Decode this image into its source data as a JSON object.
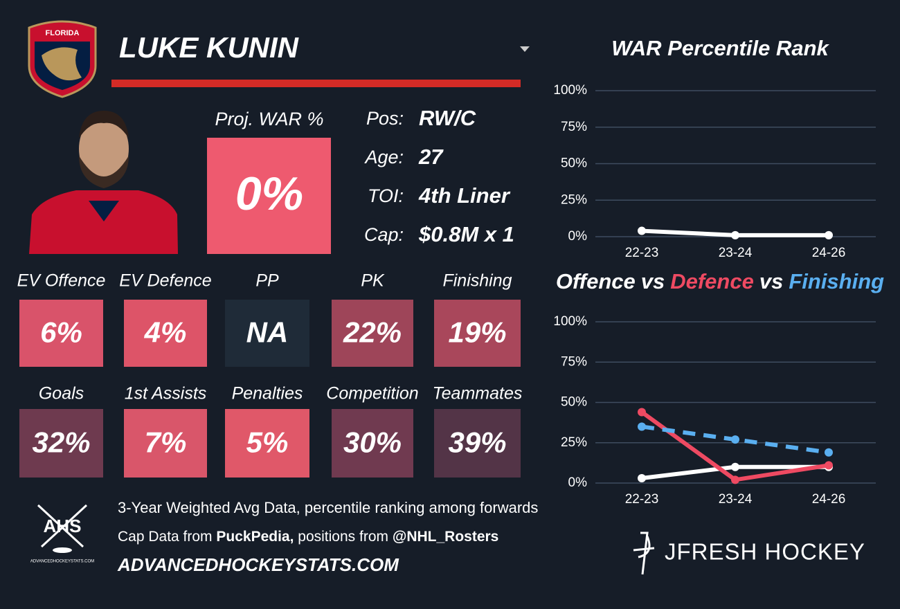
{
  "header": {
    "team_logo_text": "FLORIDA",
    "player": "LUKE KUNIN"
  },
  "projection": {
    "label": "Proj. WAR %",
    "value": "0%",
    "color": "#ee5a6f"
  },
  "info": [
    {
      "label": "Pos:",
      "value": "RW/C"
    },
    {
      "label": "Age:",
      "value": "27"
    },
    {
      "label": "TOI:",
      "value": "4th Liner"
    },
    {
      "label": "Cap:",
      "value": "$0.8M x 1"
    }
  ],
  "tiles": [
    {
      "label": "EV Offence",
      "value": "6%",
      "color": "#d9536a"
    },
    {
      "label": "EV Defence",
      "value": "4%",
      "color": "#dd5468"
    },
    {
      "label": "PP",
      "value": "NA",
      "color": "#1f2b38"
    },
    {
      "label": "PK",
      "value": "22%",
      "color": "#9e4559"
    },
    {
      "label": "Finishing",
      "value": "19%",
      "color": "#a9475b"
    },
    {
      "label": "Goals",
      "value": "32%",
      "color": "#6e3a4f"
    },
    {
      "label": "1st Assists",
      "value": "7%",
      "color": "#d9566a"
    },
    {
      "label": "Penalties",
      "value": "5%",
      "color": "#e05869"
    },
    {
      "label": "Competition",
      "value": "30%",
      "color": "#703a50"
    },
    {
      "label": "Teammates",
      "value": "39%",
      "color": "#533447"
    }
  ],
  "footer": {
    "ahs_logo": "AHS",
    "ahs_logo_sub": "ADVANCEDHOCKEYSTATS.COM",
    "line1": "3-Year Weighted Avg Data, percentile ranking among forwards",
    "line2_a": "Cap Data from ",
    "line2_b": "PuckPedia,",
    "line2_c": " positions from ",
    "line2_d": "@NHL_Rosters",
    "site": "ADVANCEDHOCKEYSTATS.COM",
    "brand": "JFRESH HOCKEY"
  },
  "chart_data": [
    {
      "type": "line",
      "title": "WAR Percentile Rank",
      "categories": [
        "22-23",
        "23-24",
        "24-26"
      ],
      "series": [
        {
          "color": "#ffffff",
          "values": [
            4,
            1,
            1
          ]
        }
      ],
      "ylim": [
        0,
        100
      ],
      "yticks": [
        {
          "value": 0,
          "label": "0%"
        },
        {
          "value": 25,
          "label": "25%"
        },
        {
          "value": 50,
          "label": "50%"
        },
        {
          "value": 75,
          "label": "75%"
        },
        {
          "value": 100,
          "label": "100%"
        }
      ],
      "grid": true
    },
    {
      "type": "line",
      "title_joiner": "vs",
      "categories": [
        "22-23",
        "23-24",
        "24-26"
      ],
      "series": [
        {
          "name": "Offence",
          "color": "#ffffff",
          "values": [
            3,
            10,
            10
          ]
        },
        {
          "name": "Defence",
          "color": "#ee4a62",
          "values": [
            44,
            2,
            11
          ]
        },
        {
          "name": "Finishing",
          "color": "#5aaff0",
          "values": [
            35,
            27,
            19
          ],
          "dashed": true
        }
      ],
      "ylim": [
        0,
        100
      ],
      "yticks": [
        {
          "value": 0,
          "label": "0%"
        },
        {
          "value": 25,
          "label": "25%"
        },
        {
          "value": 50,
          "label": "50%"
        },
        {
          "value": 75,
          "label": "75%"
        },
        {
          "value": 100,
          "label": "100%"
        }
      ],
      "grid": true
    }
  ]
}
